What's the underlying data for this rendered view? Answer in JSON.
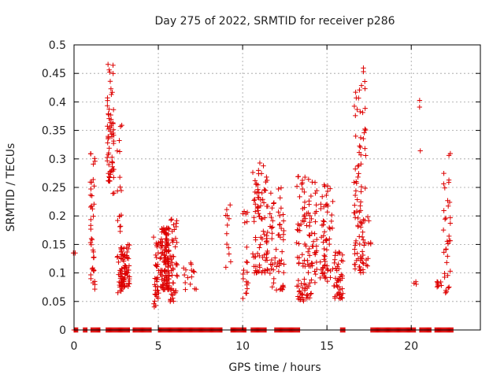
{
  "chart_data": {
    "type": "scatter",
    "title": "Day 275 of 2022, SRMTID for receiver p286",
    "xlabel": "GPS time / hours",
    "ylabel": "SRMTID / TECUs",
    "xlim": [
      0,
      24.1
    ],
    "ylim": [
      0,
      0.5
    ],
    "xticks": [
      0,
      5,
      10,
      15,
      20
    ],
    "yticks": [
      0,
      0.05,
      0.1,
      0.15,
      0.2,
      0.25,
      0.3,
      0.35,
      0.4,
      0.45,
      0.5
    ],
    "xtick_labels": [
      "0",
      "5",
      "10",
      "15",
      "20"
    ],
    "ytick_labels": [
      "0",
      "0.05",
      "0.1",
      "0.15",
      "0.2",
      "0.25",
      "0.3",
      "0.35",
      "0.4",
      "0.45",
      "0.5"
    ],
    "grid": true,
    "marker": "+",
    "series": [
      {
        "name": "SRMTID",
        "color": "#dd0000",
        "clusters": [
          {
            "x": [
              -0.1,
              0.1
            ],
            "y": [
              0.135,
              0.135
            ],
            "n": 2
          },
          {
            "x": [
              0.95,
              1.25
            ],
            "y": [
              0.07,
              0.31
            ],
            "n": 40
          },
          {
            "x": [
              1.95,
              2.35
            ],
            "y": [
              0.26,
              0.475
            ],
            "n": 60
          },
          {
            "x": [
              2.2,
              2.45
            ],
            "y": [
              0.23,
              0.29
            ],
            "n": 6
          },
          {
            "x": [
              2.55,
              2.85
            ],
            "y": [
              0.06,
              0.37
            ],
            "n": 35
          },
          {
            "x": [
              2.75,
              3.3
            ],
            "y": [
              0.075,
              0.15
            ],
            "n": 70
          },
          {
            "x": [
              4.7,
              5.05
            ],
            "y": [
              0.04,
              0.17
            ],
            "n": 35
          },
          {
            "x": [
              5.1,
              5.65
            ],
            "y": [
              0.07,
              0.18
            ],
            "n": 120
          },
          {
            "x": [
              5.7,
              6.15
            ],
            "y": [
              0.045,
              0.195
            ],
            "n": 45
          },
          {
            "x": [
              6.5,
              7.3
            ],
            "y": [
              0.07,
              0.12
            ],
            "n": 15
          },
          {
            "x": [
              9.0,
              9.3
            ],
            "y": [
              0.105,
              0.22
            ],
            "n": 12
          },
          {
            "x": [
              10.0,
              10.35
            ],
            "y": [
              0.055,
              0.21
            ],
            "n": 20
          },
          {
            "x": [
              10.6,
              11.5
            ],
            "y": [
              0.1,
              0.3
            ],
            "n": 90
          },
          {
            "x": [
              11.6,
              12.5
            ],
            "y": [
              0.07,
              0.25
            ],
            "n": 60
          },
          {
            "x": [
              13.2,
              14.4
            ],
            "y": [
              0.05,
              0.27
            ],
            "n": 120
          },
          {
            "x": [
              14.6,
              15.35
            ],
            "y": [
              0.085,
              0.26
            ],
            "n": 60
          },
          {
            "x": [
              15.4,
              15.95
            ],
            "y": [
              0.055,
              0.14
            ],
            "n": 45
          },
          {
            "x": [
              16.6,
              17.3
            ],
            "y": [
              0.1,
              0.46
            ],
            "n": 90
          },
          {
            "x": [
              17.1,
              17.6
            ],
            "y": [
              0.11,
              0.2
            ],
            "n": 12
          },
          {
            "x": [
              20.1,
              20.3
            ],
            "y": [
              0.08,
              0.09
            ],
            "n": 3
          },
          {
            "x": [
              20.4,
              20.55
            ],
            "y": [
              0.29,
              0.41
            ],
            "n": 3
          },
          {
            "x": [
              21.5,
              21.85
            ],
            "y": [
              0.075,
              0.09
            ],
            "n": 10
          },
          {
            "x": [
              21.9,
              22.35
            ],
            "y": [
              0.065,
              0.315
            ],
            "n": 35
          }
        ],
        "zero_runs": [
          [
            0.0,
            0.25
          ],
          [
            0.55,
            0.8
          ],
          [
            1.0,
            1.55
          ],
          [
            1.9,
            3.3
          ],
          [
            3.5,
            4.6
          ],
          [
            5.0,
            8.8
          ],
          [
            9.3,
            10.2
          ],
          [
            10.5,
            11.4
          ],
          [
            11.9,
            13.4
          ],
          [
            15.8,
            16.1
          ],
          [
            17.6,
            20.3
          ],
          [
            20.5,
            21.2
          ],
          [
            21.4,
            22.5
          ]
        ]
      }
    ]
  }
}
